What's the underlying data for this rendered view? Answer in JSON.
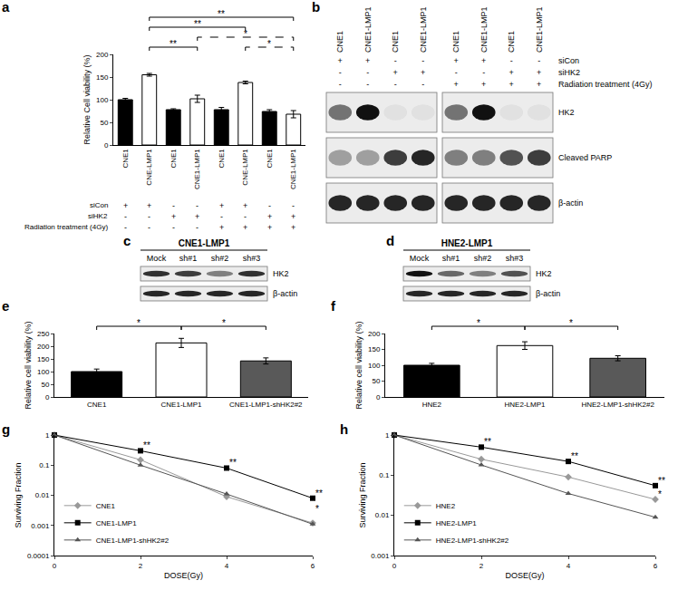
{
  "chart_data": [
    {
      "panel": "a",
      "type": "bar",
      "categories": [
        "CNE1",
        "CNE-LMP1",
        "CNE1",
        "CNE1-LMP1",
        "CNE1",
        "CNE-LMP1",
        "CNE1",
        "CNE1-LMP1"
      ],
      "values": [
        100,
        155,
        78,
        102,
        78,
        138,
        74,
        68
      ],
      "errors": [
        3,
        3,
        2,
        8,
        5,
        3,
        4,
        8
      ],
      "colors": [
        "#000000",
        "#ffffff",
        "#000000",
        "#ffffff",
        "#000000",
        "#ffffff",
        "#000000",
        "#ffffff"
      ],
      "y_label": "Relative Cell viability (%)",
      "ylim": [
        0,
        200
      ],
      "yticks": [
        0,
        50,
        100,
        150,
        200
      ],
      "grid": false,
      "conditions": [
        {
          "label": "siCon",
          "marks": [
            "+",
            "+",
            "-",
            "-",
            "+",
            "+",
            "-",
            "-"
          ]
        },
        {
          "label": "siHK2",
          "marks": [
            "-",
            "-",
            "+",
            "+",
            "-",
            "-",
            "+",
            "+"
          ]
        },
        {
          "label": "Radiation treatment (4Gy)",
          "marks": [
            "-",
            "-",
            "-",
            "-",
            "+",
            "+",
            "+",
            "+"
          ]
        }
      ],
      "significance": [
        {
          "from": 1,
          "to": 3,
          "label": "**",
          "line_style": "solid"
        },
        {
          "from": 5,
          "to": 7,
          "label": "*",
          "line_style": "dashed"
        },
        {
          "from": 3,
          "to": 7,
          "label": "*",
          "line_style": "dashed"
        },
        {
          "from": 1,
          "to": 5,
          "label": "**",
          "line_style": "solid"
        },
        {
          "from": 1,
          "to": 7,
          "label": "**",
          "line_style": "solid"
        }
      ]
    },
    {
      "panel": "e",
      "type": "bar",
      "categories": [
        "CNE1",
        "CNE1-LMP1",
        "CNE1-LMP1-shHK2#2"
      ],
      "values": [
        100,
        213,
        142
      ],
      "errors": [
        10,
        18,
        12
      ],
      "colors": [
        "#000000",
        "#ffffff",
        "#595959"
      ],
      "y_label": "Relative cell viability (%)",
      "ylim": [
        0,
        250
      ],
      "yticks": [
        0,
        50,
        100,
        150,
        200,
        250
      ],
      "grid": false,
      "significance": [
        {
          "from": 0,
          "to": 1,
          "label": "*",
          "line_style": "solid"
        },
        {
          "from": 1,
          "to": 2,
          "label": "*",
          "line_style": "solid"
        }
      ]
    },
    {
      "panel": "f",
      "type": "bar",
      "categories": [
        "HNE2",
        "HNE2-LMP1",
        "HNE2-LMP1-shHK2#2"
      ],
      "values": [
        100,
        162,
        122
      ],
      "errors": [
        6,
        12,
        8
      ],
      "colors": [
        "#000000",
        "#ffffff",
        "#595959"
      ],
      "y_label": "Relative cell viability (%)",
      "ylim": [
        0,
        200
      ],
      "yticks": [
        0,
        50,
        100,
        150,
        200
      ],
      "grid": false,
      "significance": [
        {
          "from": 0,
          "to": 1,
          "label": "*",
          "line_style": "solid"
        },
        {
          "from": 1,
          "to": 2,
          "label": "*",
          "line_style": "solid"
        }
      ]
    },
    {
      "panel": "g",
      "type": "line",
      "x": [
        0,
        2,
        4,
        6
      ],
      "series": [
        {
          "name": "CNE1",
          "color": "#999999",
          "marker": "diamond",
          "values": [
            1,
            0.15,
            0.009,
            0.0012
          ]
        },
        {
          "name": "CNE1-LMP1",
          "color": "#000000",
          "marker": "square",
          "values": [
            1,
            0.3,
            0.08,
            0.008
          ]
        },
        {
          "name": "CNE1-LMP1-shHK2#2",
          "color": "#555555",
          "marker": "triangle",
          "values": [
            1,
            0.1,
            0.011,
            0.0011
          ]
        }
      ],
      "x_label": "DOSE(Gy)",
      "y_label": "Surviving Fraction",
      "log": "y",
      "xlim": [
        0,
        6
      ],
      "xticks": [
        0,
        2,
        4,
        6
      ],
      "ylim": [
        0.0001,
        1
      ],
      "yticks": [
        0.0001,
        0.001,
        0.01,
        0.1,
        1
      ],
      "grid": false,
      "legend": "lower left",
      "annotations": [
        {
          "x": 2,
          "y": 0.3,
          "text": "**"
        },
        {
          "x": 4,
          "y": 0.08,
          "text": "**"
        },
        {
          "x": 6,
          "y": 0.008,
          "text": "**"
        },
        {
          "x": 6,
          "y": 0.0025,
          "text": "*"
        }
      ]
    },
    {
      "panel": "h",
      "type": "line",
      "x": [
        0,
        2,
        4,
        6
      ],
      "series": [
        {
          "name": "HNE2",
          "color": "#999999",
          "marker": "diamond",
          "values": [
            1,
            0.25,
            0.09,
            0.025
          ]
        },
        {
          "name": "HNE2-LMP1",
          "color": "#000000",
          "marker": "square",
          "values": [
            1,
            0.5,
            0.22,
            0.055
          ]
        },
        {
          "name": "HNE2-LMP1-shHK2#2",
          "color": "#555555",
          "marker": "triangle",
          "values": [
            1,
            0.18,
            0.035,
            0.009
          ]
        }
      ],
      "x_label": "DOSE(Gy)",
      "y_label": "Surviving Fraction",
      "log": "y",
      "xlim": [
        0,
        6
      ],
      "xticks": [
        0,
        2,
        4,
        6
      ],
      "ylim": [
        0.001,
        1
      ],
      "yticks": [
        0.001,
        0.01,
        0.1,
        1
      ],
      "grid": false,
      "legend": "lower left",
      "annotations": [
        {
          "x": 2,
          "y": 0.5,
          "text": "**"
        },
        {
          "x": 4,
          "y": 0.22,
          "text": "**"
        },
        {
          "x": 6,
          "y": 0.055,
          "text": "**"
        },
        {
          "x": 6,
          "y": 0.025,
          "text": "*"
        }
      ]
    }
  ],
  "blots": [
    {
      "panel": "b",
      "rows": [
        "HK2",
        "Cleaved PARP",
        "β-actin"
      ],
      "blocks": [
        {
          "lanes": [
            "CNE1",
            "CNE1-LMP1",
            "CNE1",
            "CNE1-LMP1"
          ],
          "bands": [
            [
              0.55,
              1,
              0.05,
              0.05
            ],
            [
              0.35,
              0.35,
              0.8,
              0.9
            ],
            [
              0.9,
              0.9,
              0.9,
              0.9
            ]
          ]
        },
        {
          "lanes": [
            "CNE1",
            "CNE1-LMP1",
            "CNE1",
            "CNE1-LMP1"
          ],
          "bands": [
            [
              0.55,
              1,
              0.05,
              0.05
            ],
            [
              0.5,
              0.5,
              0.7,
              0.8
            ],
            [
              0.9,
              0.9,
              0.9,
              0.9
            ]
          ]
        }
      ],
      "conditions": [
        {
          "label": "siCon",
          "marks": [
            "+",
            "+",
            "-",
            "-",
            "+",
            "+",
            "-",
            "-"
          ]
        },
        {
          "label": "siHK2",
          "marks": [
            "-",
            "-",
            "+",
            "+",
            "-",
            "-",
            "+",
            "+"
          ]
        },
        {
          "label": "Radiation treatment (4Gy)",
          "marks": [
            "-",
            "-",
            "-",
            "-",
            "+",
            "+",
            "+",
            "+"
          ]
        }
      ]
    },
    {
      "panel": "c",
      "title": "CNE1-LMP1",
      "rows": [
        "HK2",
        "β-actin"
      ],
      "blocks": [
        {
          "lanes": [
            "Mock",
            "sh#1",
            "sh#2",
            "sh#3"
          ],
          "bands": [
            [
              0.85,
              0.8,
              0.5,
              0.85
            ],
            [
              0.9,
              0.9,
              0.9,
              0.9
            ]
          ]
        }
      ]
    },
    {
      "panel": "d",
      "title": "HNE2-LMP1",
      "rows": [
        "HK2",
        "β-actin"
      ],
      "blocks": [
        {
          "lanes": [
            "Mock",
            "sh#1",
            "sh#2",
            "sh#3"
          ],
          "bands": [
            [
              1,
              0.6,
              0.5,
              0.7
            ],
            [
              0.9,
              0.9,
              0.9,
              0.9
            ]
          ]
        }
      ]
    }
  ]
}
